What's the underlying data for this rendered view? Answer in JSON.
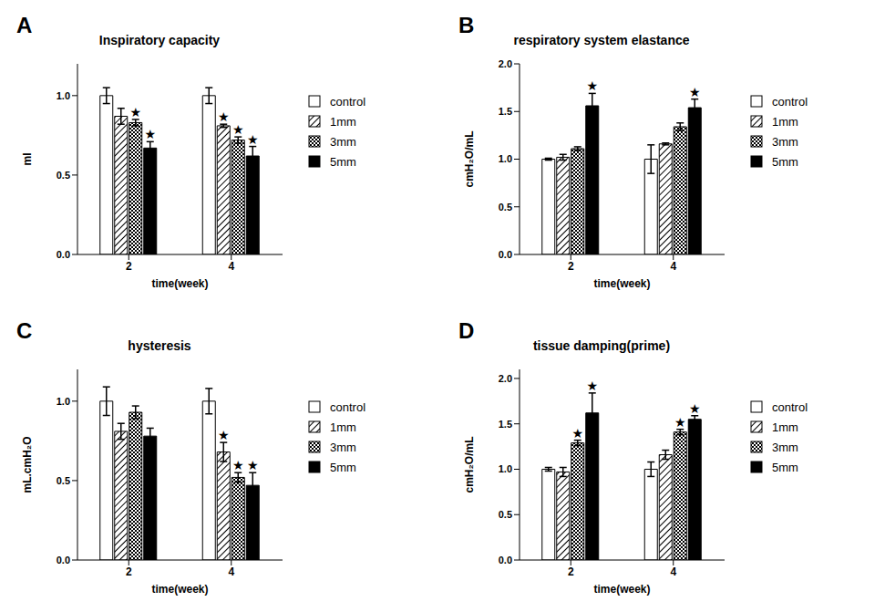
{
  "chart_data": [
    {
      "type": "bar",
      "panel": "A",
      "title": "Inspiratory capacity",
      "x_label": "time(week)",
      "y_label": "ml",
      "categories": [
        "2",
        "4"
      ],
      "ylim": [
        0,
        1.2
      ],
      "yticks": [
        {
          "value": 0,
          "label": "0.0"
        },
        {
          "value": 0.5,
          "label": "0.5"
        },
        {
          "value": 1,
          "label": "1.0"
        }
      ],
      "annotation": "★",
      "series": [
        {
          "name": "control",
          "color": "#ffffff",
          "values": [
            1.0,
            1.0
          ],
          "errors": [
            0.05,
            0.05
          ],
          "significant": [
            false,
            false
          ]
        },
        {
          "name": "1mm",
          "color": "#000000",
          "values": [
            0.87,
            0.81
          ],
          "errors": [
            0.05,
            0.01
          ],
          "significant": [
            false,
            true
          ]
        },
        {
          "name": "3mm",
          "color": "#000000",
          "values": [
            0.83,
            0.72
          ],
          "errors": [
            0.02,
            0.02
          ],
          "significant": [
            true,
            true
          ]
        },
        {
          "name": "5mm",
          "color": "#000000",
          "values": [
            0.67,
            0.62
          ],
          "errors": [
            0.04,
            0.06
          ],
          "significant": [
            true,
            true
          ]
        }
      ]
    },
    {
      "type": "bar",
      "panel": "B",
      "title": "respiratory system elastance",
      "x_label": "time(week)",
      "y_label": "cmH₂O/mL",
      "categories": [
        "2",
        "4"
      ],
      "ylim": [
        0,
        2.0
      ],
      "yticks": [
        {
          "value": 0,
          "label": "0.0"
        },
        {
          "value": 0.5,
          "label": "0.5"
        },
        {
          "value": 1,
          "label": "1.0"
        },
        {
          "value": 1.5,
          "label": "1.5"
        },
        {
          "value": 2,
          "label": "2.0"
        }
      ],
      "annotation": "★",
      "series": [
        {
          "name": "control",
          "color": "#ffffff",
          "values": [
            1.0,
            1.0
          ],
          "errors": [
            0.01,
            0.15
          ],
          "significant": [
            false,
            false
          ]
        },
        {
          "name": "1mm",
          "color": "#000000",
          "values": [
            1.02,
            1.16
          ],
          "errors": [
            0.03,
            0.01
          ],
          "significant": [
            false,
            false
          ]
        },
        {
          "name": "3mm",
          "color": "#000000",
          "values": [
            1.11,
            1.34
          ],
          "errors": [
            0.02,
            0.04
          ],
          "significant": [
            false,
            false
          ]
        },
        {
          "name": "5mm",
          "color": "#000000",
          "values": [
            1.56,
            1.54
          ],
          "errors": [
            0.13,
            0.09
          ],
          "significant": [
            true,
            true
          ]
        }
      ]
    },
    {
      "type": "bar",
      "panel": "C",
      "title": "hysteresis",
      "x_label": "time(week)",
      "y_label": "mL.cmH₂O",
      "categories": [
        "2",
        "4"
      ],
      "ylim": [
        0,
        1.2
      ],
      "yticks": [
        {
          "value": 0,
          "label": "0.0"
        },
        {
          "value": 0.5,
          "label": "0.5"
        },
        {
          "value": 1,
          "label": "1.0"
        }
      ],
      "annotation": "★",
      "series": [
        {
          "name": "control",
          "color": "#ffffff",
          "values": [
            1.0,
            1.0
          ],
          "errors": [
            0.09,
            0.08
          ],
          "significant": [
            false,
            false
          ]
        },
        {
          "name": "1mm",
          "color": "#000000",
          "values": [
            0.81,
            0.68
          ],
          "errors": [
            0.05,
            0.06
          ],
          "significant": [
            false,
            true
          ]
        },
        {
          "name": "3mm",
          "color": "#000000",
          "values": [
            0.93,
            0.52
          ],
          "errors": [
            0.04,
            0.03
          ],
          "significant": [
            false,
            true
          ]
        },
        {
          "name": "5mm",
          "color": "#000000",
          "values": [
            0.78,
            0.47
          ],
          "errors": [
            0.05,
            0.08
          ],
          "significant": [
            false,
            true
          ]
        }
      ]
    },
    {
      "type": "bar",
      "panel": "D",
      "title": "tissue damping(prime)",
      "x_label": "time(week)",
      "y_label": "cmH₂O/mL",
      "categories": [
        "2",
        "4"
      ],
      "ylim": [
        0,
        2.1
      ],
      "yticks": [
        {
          "value": 0,
          "label": "0.0"
        },
        {
          "value": 0.5,
          "label": "0.5"
        },
        {
          "value": 1,
          "label": "1.0"
        },
        {
          "value": 1.5,
          "label": "1.5"
        },
        {
          "value": 2,
          "label": "2.0"
        }
      ],
      "annotation": "★",
      "series": [
        {
          "name": "control",
          "color": "#ffffff",
          "values": [
            1.0,
            1.0
          ],
          "errors": [
            0.02,
            0.08
          ],
          "significant": [
            false,
            false
          ]
        },
        {
          "name": "1mm",
          "color": "#000000",
          "values": [
            0.97,
            1.16
          ],
          "errors": [
            0.05,
            0.05
          ],
          "significant": [
            false,
            false
          ]
        },
        {
          "name": "3mm",
          "color": "#000000",
          "values": [
            1.29,
            1.41
          ],
          "errors": [
            0.03,
            0.03
          ],
          "significant": [
            true,
            true
          ]
        },
        {
          "name": "5mm",
          "color": "#000000",
          "values": [
            1.62,
            1.55
          ],
          "errors": [
            0.22,
            0.04
          ],
          "significant": [
            true,
            true
          ]
        }
      ]
    }
  ]
}
